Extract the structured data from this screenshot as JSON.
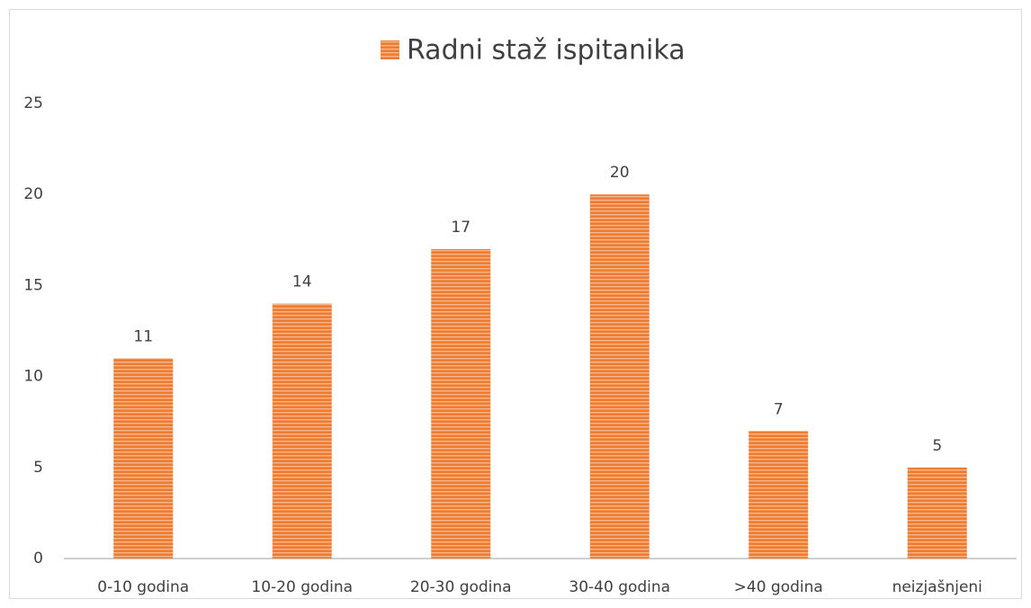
{
  "chart_data": {
    "type": "bar",
    "categories": [
      "0-10 godina",
      "10-20 godina",
      "20-30 godina",
      "30-40 godina",
      ">40 godina",
      "neizjašnjeni"
    ],
    "series": [
      {
        "name": "Radni staž ispitanika",
        "color": "#ed7d31",
        "values": [
          11,
          14,
          17,
          20,
          7,
          5
        ]
      }
    ],
    "ylim": [
      0,
      25
    ],
    "yticks": [
      0,
      5,
      10,
      15,
      20,
      25
    ],
    "grid": false,
    "legend": "top"
  }
}
